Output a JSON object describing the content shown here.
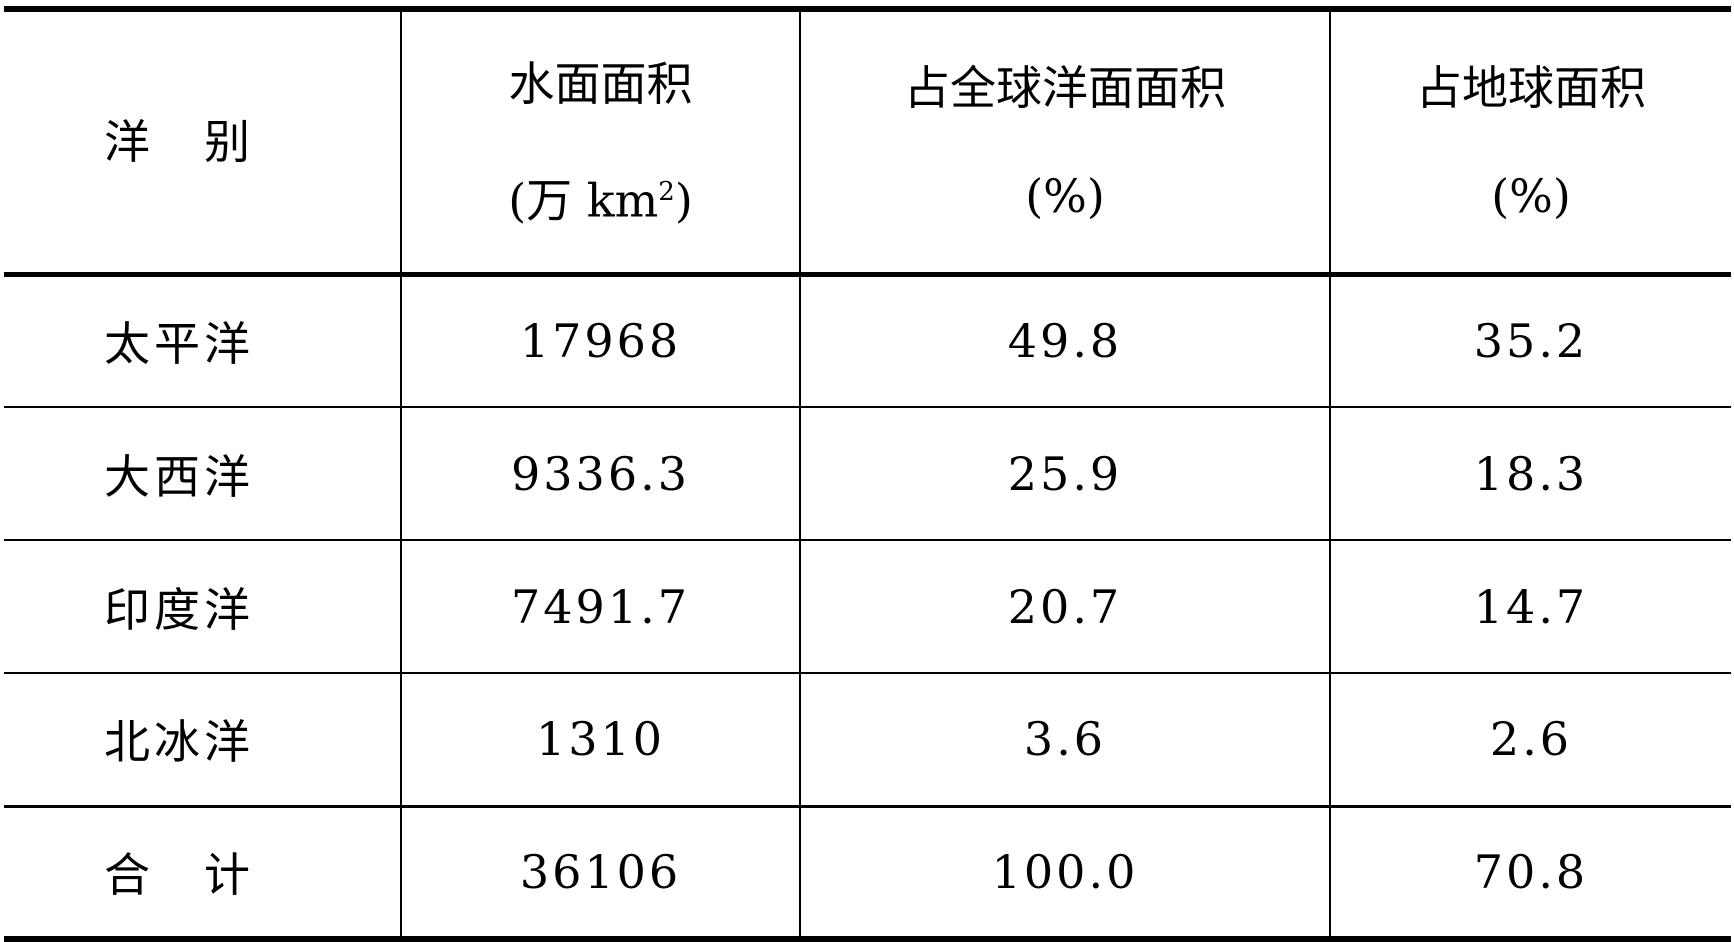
{
  "table": {
    "headers": [
      {
        "line1": "洋　别",
        "line2": ""
      },
      {
        "line1": "水面面积",
        "line2": "(万 km",
        "sup": "2",
        "line2_end": ")"
      },
      {
        "line1": "占全球洋面面积",
        "line2": "(%)"
      },
      {
        "line1": "占地球面积",
        "line2": "(%)"
      }
    ],
    "rows": [
      [
        "太平洋",
        "17968",
        "49.8",
        "35.2"
      ],
      [
        "大西洋",
        "9336.3",
        "25.9",
        "18.3"
      ],
      [
        "印度洋",
        "7491.7",
        "20.7",
        "14.7"
      ],
      [
        "北冰洋",
        "1310",
        "3.6",
        "2.6"
      ],
      [
        "合　计",
        "36106",
        "100.0",
        "70.8"
      ]
    ]
  }
}
